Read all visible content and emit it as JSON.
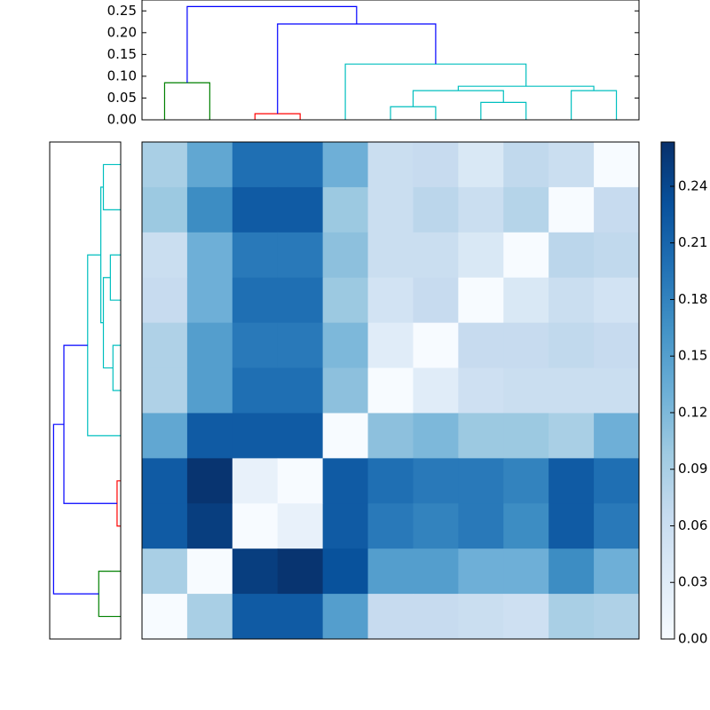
{
  "chart_data": [
    {
      "type": "dendrogram",
      "orientation": "top",
      "icoord": [
        [
          5,
          5,
          15,
          15
        ],
        [
          25,
          25,
          35,
          35
        ],
        [
          55,
          55,
          65,
          65
        ],
        [
          75,
          75,
          85,
          85
        ],
        [
          60,
          60,
          80,
          80
        ],
        [
          95,
          95,
          105,
          105
        ],
        [
          70,
          70,
          100,
          100
        ],
        [
          45,
          45,
          85,
          85
        ],
        [
          30,
          30,
          65,
          65
        ],
        [
          10,
          10,
          47.5,
          47.5
        ]
      ],
      "dcoord": [
        [
          0,
          0.085,
          0.085,
          0
        ],
        [
          0,
          0.014,
          0.014,
          0
        ],
        [
          0,
          0.03,
          0.03,
          0
        ],
        [
          0,
          0.04,
          0.04,
          0
        ],
        [
          0.03,
          0.067,
          0.067,
          0.04
        ],
        [
          0,
          0.067,
          0.067,
          0
        ],
        [
          0.067,
          0.077,
          0.077,
          0.067
        ],
        [
          0,
          0.128,
          0.128,
          0.077
        ],
        [
          0.014,
          0.22,
          0.22,
          0.128
        ],
        [
          0.085,
          0.26,
          0.26,
          0.22
        ]
      ],
      "colors": [
        "#008000",
        "#ff0000",
        "#00bfbf",
        "#00bfbf",
        "#00bfbf",
        "#00bfbf",
        "#00bfbf",
        "#00bfbf",
        "#0000ff",
        "#0000ff"
      ],
      "xlim": [
        0,
        110
      ],
      "ylim": [
        0,
        0.275
      ],
      "yticks": [
        {
          "value": 0,
          "label": "0.00"
        },
        0.05,
        {
          "value": 0.1,
          "label": "0.10"
        },
        0.15,
        {
          "value": 0.2,
          "label": "0.20"
        },
        0.25
      ]
    },
    {
      "type": "dendrogram",
      "orientation": "left",
      "icoord": [
        [
          5,
          5,
          15,
          15
        ],
        [
          25,
          25,
          35,
          35
        ],
        [
          55,
          55,
          65,
          65
        ],
        [
          75,
          75,
          85,
          85
        ],
        [
          60,
          60,
          80,
          80
        ],
        [
          95,
          95,
          105,
          105
        ],
        [
          70,
          70,
          100,
          100
        ],
        [
          45,
          45,
          85,
          85
        ],
        [
          30,
          30,
          65,
          65
        ],
        [
          10,
          10,
          47.5,
          47.5
        ]
      ],
      "dcoord": [
        [
          0,
          0.085,
          0.085,
          0
        ],
        [
          0,
          0.014,
          0.014,
          0
        ],
        [
          0,
          0.03,
          0.03,
          0
        ],
        [
          0,
          0.04,
          0.04,
          0
        ],
        [
          0.03,
          0.067,
          0.067,
          0.04
        ],
        [
          0,
          0.067,
          0.067,
          0
        ],
        [
          0.067,
          0.077,
          0.077,
          0.067
        ],
        [
          0,
          0.128,
          0.128,
          0.077
        ],
        [
          0.014,
          0.22,
          0.22,
          0.128
        ],
        [
          0.085,
          0.26,
          0.26,
          0.22
        ]
      ],
      "colors": [
        "#008000",
        "#ff0000",
        "#00bfbf",
        "#00bfbf",
        "#00bfbf",
        "#00bfbf",
        "#00bfbf",
        "#00bfbf",
        "#0000ff",
        "#0000ff"
      ],
      "ylim": [
        0,
        110
      ],
      "xlim": [
        0.275,
        0
      ]
    },
    {
      "type": "heatmap",
      "values": [
        [
          0.09,
          0.14,
          0.2,
          0.2,
          0.13,
          0.06,
          0.065,
          0.04,
          0.07,
          0.06,
          0.0
        ],
        [
          0.1,
          0.17,
          0.22,
          0.22,
          0.1,
          0.06,
          0.075,
          0.06,
          0.08,
          0.0,
          0.065
        ],
        [
          0.06,
          0.13,
          0.19,
          0.19,
          0.11,
          0.06,
          0.06,
          0.04,
          0.0,
          0.075,
          0.07
        ],
        [
          0.065,
          0.13,
          0.2,
          0.2,
          0.1,
          0.05,
          0.065,
          0.0,
          0.04,
          0.06,
          0.05
        ],
        [
          0.085,
          0.15,
          0.19,
          0.19,
          0.12,
          0.03,
          0.0,
          0.065,
          0.065,
          0.07,
          0.065
        ],
        [
          0.085,
          0.15,
          0.2,
          0.2,
          0.11,
          0.0,
          0.03,
          0.055,
          0.06,
          0.06,
          0.06
        ],
        [
          0.14,
          0.22,
          0.22,
          0.22,
          0.0,
          0.11,
          0.12,
          0.1,
          0.1,
          0.09,
          0.13
        ],
        [
          0.22,
          0.26,
          0.02,
          0.0,
          0.22,
          0.2,
          0.19,
          0.19,
          0.18,
          0.22,
          0.2
        ],
        [
          0.22,
          0.25,
          0.0,
          0.02,
          0.22,
          0.19,
          0.18,
          0.19,
          0.17,
          0.22,
          0.19
        ],
        [
          0.09,
          0.0,
          0.25,
          0.26,
          0.23,
          0.15,
          0.15,
          0.13,
          0.13,
          0.17,
          0.13
        ],
        [
          0.0,
          0.09,
          0.22,
          0.22,
          0.15,
          0.065,
          0.065,
          0.06,
          0.055,
          0.09,
          0.085
        ]
      ],
      "colormap": [
        "#f7fbff",
        "#deebf7",
        "#c6dbef",
        "#9ecae1",
        "#6baed6",
        "#4292c6",
        "#2171b5",
        "#08519c",
        "#08306b"
      ],
      "clim": [
        0,
        0.2635
      ],
      "colorbar_ticks": [
        {
          "value": 0,
          "label": "0.00"
        },
        0.03,
        0.06,
        0.09,
        0.12,
        0.15,
        0.18,
        0.21,
        0.24
      ]
    }
  ]
}
